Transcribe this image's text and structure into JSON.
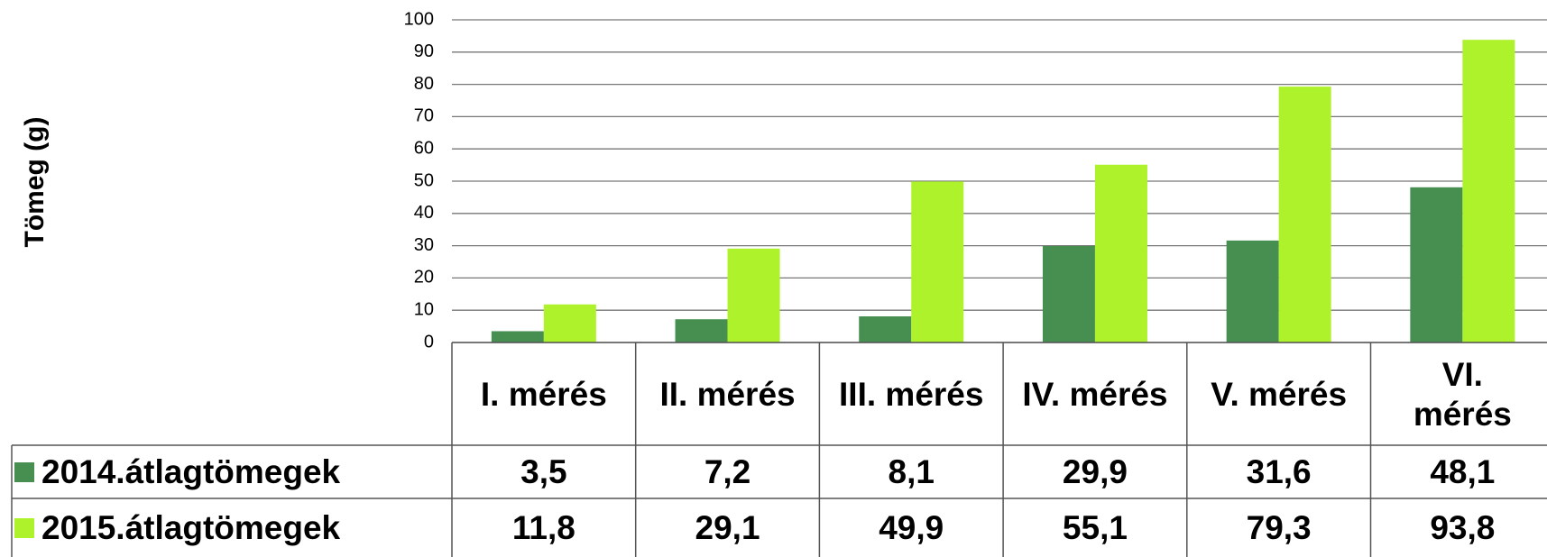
{
  "chart_data": {
    "type": "bar",
    "y_label": "Tömeg (g)",
    "categories": [
      "I. mérés",
      "II. mérés",
      "III. mérés",
      "IV. mérés",
      "V. mérés",
      "VI. mérés"
    ],
    "series": [
      {
        "name": "2014.átlagtömegek",
        "color": "#468f50",
        "values": [
          3.5,
          7.2,
          8.1,
          29.9,
          31.6,
          48.1
        ],
        "value_labels": [
          "3,5",
          "7,2",
          "8,1",
          "29,9",
          "31,6",
          "48,1"
        ]
      },
      {
        "name": "2015.átlagtömegek",
        "color": "#adf22a",
        "values": [
          11.8,
          29.1,
          49.9,
          55.1,
          79.3,
          93.8
        ],
        "value_labels": [
          "11,8",
          "29,1",
          "49,9",
          "55,1",
          "79,3",
          "93,8"
        ]
      }
    ],
    "ylim": [
      0,
      100
    ],
    "yticks": [
      0,
      10,
      20,
      30,
      40,
      50,
      60,
      70,
      80,
      90,
      100
    ],
    "grid": true,
    "data_table": true
  }
}
